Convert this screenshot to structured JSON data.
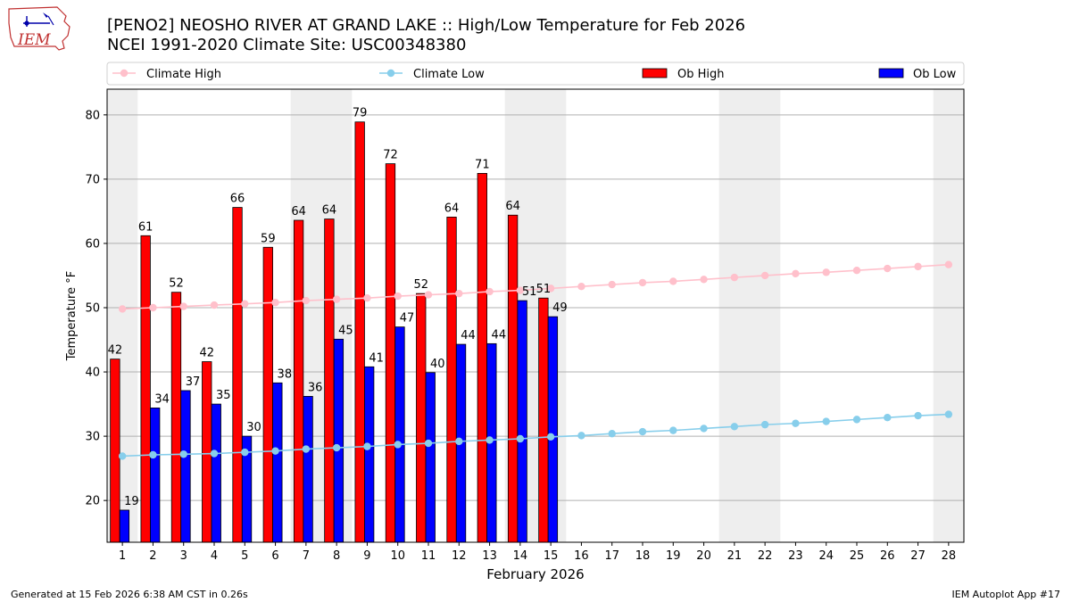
{
  "title_line1": "[PENO2] NEOSHO RIVER  AT GRAND LAKE :: High/Low Temperature for Feb 2026",
  "title_line2": "NCEI 1991-2020 Climate Site: USC00348380",
  "footer_left": "Generated at 15 Feb 2026 6:38 AM CST in 0.26s",
  "footer_right": "IEM Autoplot App #17",
  "logo_text": "IEM",
  "chart_data": {
    "type": "bar",
    "xlabel": "February 2026",
    "ylabel": "Temperature °F",
    "ylim": [
      13.5,
      84
    ],
    "yticks": [
      20,
      30,
      40,
      50,
      60,
      70,
      80
    ],
    "grid": true,
    "legend_placement": "top",
    "days": [
      1,
      2,
      3,
      4,
      5,
      6,
      7,
      8,
      9,
      10,
      11,
      12,
      13,
      14,
      15,
      16,
      17,
      18,
      19,
      20,
      21,
      22,
      23,
      24,
      25,
      26,
      27,
      28
    ],
    "weekend_days": [
      1,
      7,
      8,
      14,
      15,
      21,
      22,
      28
    ],
    "legend": [
      "Climate High",
      "Climate Low",
      "Ob High",
      "Ob Low"
    ],
    "ob_high": [
      42,
      61,
      52,
      42,
      66,
      59,
      64,
      64,
      79,
      72,
      52,
      64,
      71,
      64,
      51
    ],
    "ob_low": [
      19,
      34,
      37,
      35,
      30,
      38,
      36,
      45,
      41,
      47,
      40,
      44,
      44,
      51,
      49
    ],
    "ob_high_values": [
      42,
      61.2,
      52.4,
      41.6,
      65.6,
      59.4,
      63.6,
      63.8,
      78.9,
      72.4,
      52.2,
      64.1,
      70.9,
      64.4,
      51.5
    ],
    "ob_low_values": [
      18.5,
      34.4,
      37.1,
      35,
      30,
      38.3,
      36.2,
      45.1,
      40.8,
      47,
      39.9,
      44.3,
      44.4,
      51.1,
      48.6
    ],
    "climate_high": [
      49.8,
      50,
      50.2,
      50.4,
      50.6,
      50.8,
      51.1,
      51.3,
      51.5,
      51.8,
      52,
      52.2,
      52.5,
      52.7,
      53,
      53.3,
      53.6,
      53.9,
      54.1,
      54.4,
      54.7,
      55,
      55.3,
      55.5,
      55.8,
      56.1,
      56.4,
      56.7
    ],
    "climate_low": [
      26.9,
      27.1,
      27.2,
      27.3,
      27.5,
      27.7,
      28,
      28.2,
      28.4,
      28.7,
      28.9,
      29.2,
      29.4,
      29.6,
      29.9,
      30.1,
      30.4,
      30.7,
      30.9,
      31.2,
      31.5,
      31.8,
      32,
      32.3,
      32.6,
      32.9,
      33.2,
      33.4
    ],
    "colors": {
      "climate_high": "#ffc0cb",
      "climate_low": "#87ceeb",
      "ob_high": "#ff0000",
      "ob_low": "#0000ff",
      "weekend_shade": "#eeeeee",
      "grid": "#b0b0b0"
    }
  }
}
